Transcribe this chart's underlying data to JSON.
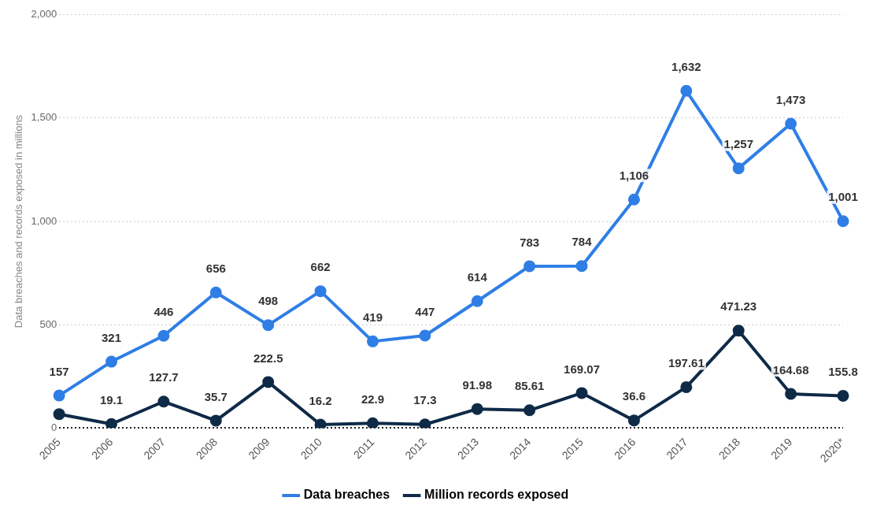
{
  "chart_data": {
    "type": "line",
    "ylabel": "Data breaches and records exposed in millions",
    "categories": [
      "2005",
      "2006",
      "2007",
      "2008",
      "2009",
      "2010",
      "2011",
      "2012",
      "2013",
      "2014",
      "2015",
      "2016",
      "2017",
      "2018",
      "2019",
      "2020*"
    ],
    "series": [
      {
        "name": "Data breaches",
        "color": "#2f7ee6",
        "values": [
          157,
          321,
          446,
          656,
          498,
          662,
          419,
          447,
          614,
          783,
          784,
          1106,
          1632,
          1257,
          1473,
          1001
        ],
        "value_labels": [
          "157",
          "321",
          "446",
          "656",
          "498",
          "662",
          "419",
          "447",
          "614",
          "783",
          "784",
          "1,106",
          "1,632",
          "1,257",
          "1,473",
          "1,001"
        ]
      },
      {
        "name": "Million records exposed",
        "color": "#0e2a47",
        "values": [
          67,
          19.1,
          127.7,
          35.7,
          222.5,
          16.2,
          22.9,
          17.3,
          91.98,
          85.61,
          169.07,
          36.6,
          197.61,
          471.23,
          164.68,
          155.8
        ],
        "value_labels": [
          null,
          "19.1",
          "127.7",
          "35.7",
          "222.5",
          "16.2",
          "22.9",
          "17.3",
          "91.98",
          "85.61",
          "169.07",
          "36.6",
          "197.61",
          "471.23",
          "164.68",
          "155.8"
        ]
      }
    ],
    "ylim": [
      0,
      2000
    ],
    "yticks": [
      0,
      500,
      {
        "value": 1000,
        "label": "1,000"
      },
      {
        "value": 1500,
        "label": "1,500"
      },
      {
        "value": 2000,
        "label": "2,000"
      }
    ],
    "grid": "y",
    "legend": "bottom",
    "marker": "circle"
  }
}
